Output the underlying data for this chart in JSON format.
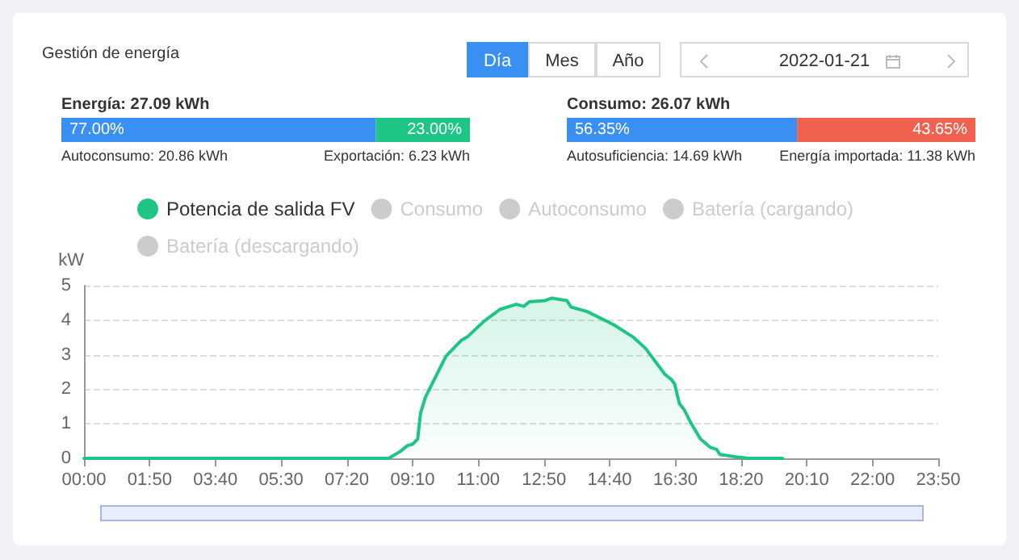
{
  "chart_data": [
    {
      "type": "other",
      "title": "Gestión de energía",
      "annotations": [
        "Día",
        "Mes",
        "Año",
        "2022-01-21"
      ]
    },
    {
      "type": "bar",
      "title": "Energía: 27.09 kWh",
      "orientation": "horizontal",
      "stacked": true,
      "xlim": [
        0,
        100
      ],
      "tick_labels": false,
      "categories": [
        null
      ],
      "series": [
        {
          "color": "#3a8ff3",
          "values": [
            77.0
          ],
          "value_labels": [
            "77.00%"
          ]
        },
        {
          "color": "#1fc584",
          "values": [
            23.0
          ],
          "value_labels": [
            "23.00%"
          ]
        }
      ],
      "annotations": [
        "Autoconsumo: 20.86 kWh",
        "Exportación: 6.23 kWh"
      ]
    },
    {
      "type": "bar",
      "title": "Consumo: 26.07 kWh",
      "orientation": "horizontal",
      "stacked": true,
      "xlim": [
        0,
        100
      ],
      "tick_labels": false,
      "categories": [
        null
      ],
      "series": [
        {
          "color": "#3a8ff3",
          "values": [
            56.35
          ],
          "value_labels": [
            "56.35%"
          ]
        },
        {
          "color": "#f0614f",
          "values": [
            43.65
          ],
          "value_labels": [
            "43.65%"
          ]
        }
      ],
      "annotations": [
        "Autosuficiencia: 14.69 kWh",
        "Energía importada: 11.38 kWh"
      ]
    },
    {
      "type": "area",
      "ylabel": "kW",
      "legend": "top",
      "grid": "y",
      "marker": "none",
      "xlim": [
        0,
        23.8333
      ],
      "ylim": [
        0,
        5
      ],
      "yticks": [
        0,
        1,
        2,
        3,
        4,
        5
      ],
      "xticks": [
        {
          "value": 0,
          "label": "00:00"
        },
        {
          "value": 1.8333,
          "label": "01:50"
        },
        {
          "value": 3.6667,
          "label": "03:40"
        },
        {
          "value": 5.5,
          "label": "05:30"
        },
        {
          "value": 7.3333,
          "label": "07:20"
        },
        {
          "value": 9.1667,
          "label": "09:10"
        },
        {
          "value": 11,
          "label": "11:00"
        },
        {
          "value": 12.8333,
          "label": "12:50"
        },
        {
          "value": 14.6667,
          "label": "14:40"
        },
        {
          "value": 16.5,
          "label": "16:30"
        },
        {
          "value": 18.3333,
          "label": "18:20"
        },
        {
          "value": 20.1667,
          "label": "20:10"
        },
        {
          "value": 22,
          "label": "22:00"
        },
        {
          "value": 23.8333,
          "label": "23:50"
        }
      ],
      "series": [
        {
          "name": "Potencia de salida FV",
          "color": "#1fc584",
          "x": [
            0,
            8.5,
            8.81,
            9.03,
            9.17,
            9.31,
            9.39,
            9.53,
            9.8,
            10.1,
            10.52,
            10.7,
            11.16,
            11.6,
            12.06,
            12.27,
            12.42,
            12.87,
            13.05,
            13.23,
            13.47,
            13.59,
            14.04,
            14.76,
            15.31,
            15.67,
            16.21,
            16.39,
            16.48,
            16.61,
            16.75,
            16.93,
            17.2,
            17.47,
            17.65,
            17.74,
            18.2,
            18.56,
            19.49
          ],
          "values": [
            0,
            0,
            0.19,
            0.37,
            0.41,
            0.56,
            1.31,
            1.78,
            2.34,
            2.96,
            3.41,
            3.52,
            3.97,
            4.31,
            4.46,
            4.4,
            4.53,
            4.57,
            4.64,
            4.61,
            4.57,
            4.38,
            4.25,
            3.88,
            3.52,
            3.18,
            2.43,
            2.28,
            2.15,
            1.59,
            1.4,
            1.03,
            0.56,
            0.32,
            0.26,
            0.11,
            0.04,
            0,
            0
          ]
        },
        {
          "name": "Consumo",
          "color": "#cccccc"
        },
        {
          "name": "Autoconsumo",
          "color": "#cccccc"
        },
        {
          "name": "Batería (cargando)",
          "color": "#cccccc"
        },
        {
          "name": "Batería (descargando)",
          "color": "#cccccc"
        }
      ]
    }
  ]
}
